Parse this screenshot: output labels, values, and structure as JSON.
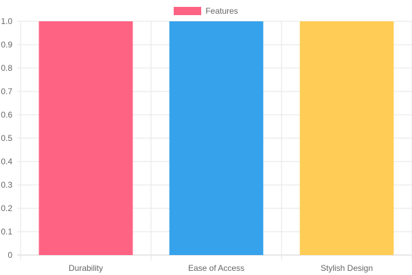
{
  "chart_data": {
    "type": "bar",
    "categories": [
      "Durability",
      "Ease of Access",
      "Stylish Design"
    ],
    "series": [
      {
        "name": "Features",
        "values": [
          1.0,
          1.0,
          1.0
        ],
        "colors": [
          "#ff6384",
          "#36a2eb",
          "#ffcd56"
        ]
      }
    ],
    "ylim": [
      0,
      1.0
    ],
    "yticks": [
      "0",
      "0.1",
      "0.2",
      "0.3",
      "0.4",
      "0.5",
      "0.6",
      "0.7",
      "0.8",
      "0.9",
      "1.0"
    ],
    "grid": true,
    "legend_position": "top-center"
  },
  "legend": {
    "label": "Features",
    "color": "#ff6384"
  }
}
